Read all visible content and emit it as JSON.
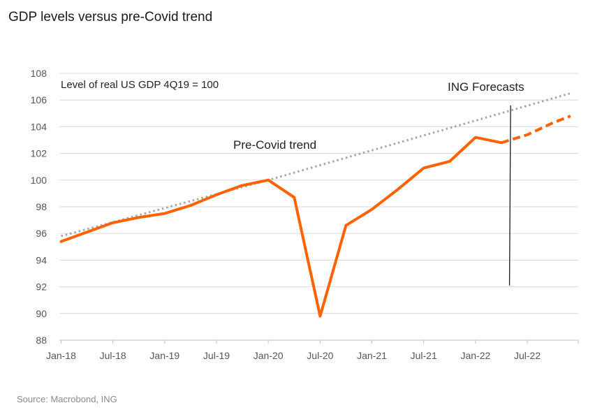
{
  "title": "GDP levels versus pre-Covid trend",
  "source": "Source: Macrobond, ING",
  "chart_data": {
    "type": "line",
    "subtitle": "Level of real US GDP 4Q19 = 100",
    "annotations": {
      "trend_label": "Pre-Covid trend",
      "forecast_label": "ING Forecasts"
    },
    "ylim": [
      88,
      108
    ],
    "yticks": [
      88,
      90,
      92,
      94,
      96,
      98,
      100,
      102,
      104,
      106,
      108
    ],
    "xlim": [
      "2018-01",
      "2022-12"
    ],
    "xticks": [
      {
        "date": "2018-01",
        "label": "Jan-18"
      },
      {
        "date": "2018-07",
        "label": "Jul-18"
      },
      {
        "date": "2019-01",
        "label": "Jan-19"
      },
      {
        "date": "2019-07",
        "label": "Jul-19"
      },
      {
        "date": "2020-01",
        "label": "Jan-20"
      },
      {
        "date": "2020-07",
        "label": "Jul-20"
      },
      {
        "date": "2021-01",
        "label": "Jan-21"
      },
      {
        "date": "2021-07",
        "label": "Jul-21"
      },
      {
        "date": "2022-01",
        "label": "Jan-22"
      },
      {
        "date": "2022-07",
        "label": "Jul-22"
      }
    ],
    "grid": true,
    "series": [
      {
        "style": "solid",
        "color": "#ff6200",
        "points": [
          {
            "x": "2018-01",
            "y": 95.4
          },
          {
            "x": "2018-04",
            "y": 96.1
          },
          {
            "x": "2018-07",
            "y": 96.8
          },
          {
            "x": "2018-10",
            "y": 97.2
          },
          {
            "x": "2019-01",
            "y": 97.5
          },
          {
            "x": "2019-04",
            "y": 98.1
          },
          {
            "x": "2019-07",
            "y": 98.9
          },
          {
            "x": "2019-10",
            "y": 99.6
          },
          {
            "x": "2020-01",
            "y": 100.0
          },
          {
            "x": "2020-04",
            "y": 98.7
          },
          {
            "x": "2020-07",
            "y": 89.8
          },
          {
            "x": "2020-10",
            "y": 96.6
          },
          {
            "x": "2021-01",
            "y": 97.8
          },
          {
            "x": "2021-04",
            "y": 99.3
          },
          {
            "x": "2021-07",
            "y": 100.9
          },
          {
            "x": "2021-10",
            "y": 101.4
          },
          {
            "x": "2022-01",
            "y": 103.2
          },
          {
            "x": "2022-04",
            "y": 102.8
          }
        ]
      },
      {
        "style": "dashed",
        "color": "#ff6200",
        "points": [
          {
            "x": "2022-04",
            "y": 102.8
          },
          {
            "x": "2022-07",
            "y": 103.4
          },
          {
            "x": "2022-10",
            "y": 104.3
          },
          {
            "x": "2022-12",
            "y": 104.8
          }
        ]
      },
      {
        "style": "dotted",
        "color": "#a6a6a6",
        "points": [
          {
            "x": "2018-01",
            "y": 95.8
          },
          {
            "x": "2020-01",
            "y": 100.0
          },
          {
            "x": "2022-12",
            "y": 106.5
          }
        ]
      }
    ],
    "forecast_marker": {
      "x": "2022-05",
      "y_from": 92.1,
      "y_to": 105.6
    }
  }
}
